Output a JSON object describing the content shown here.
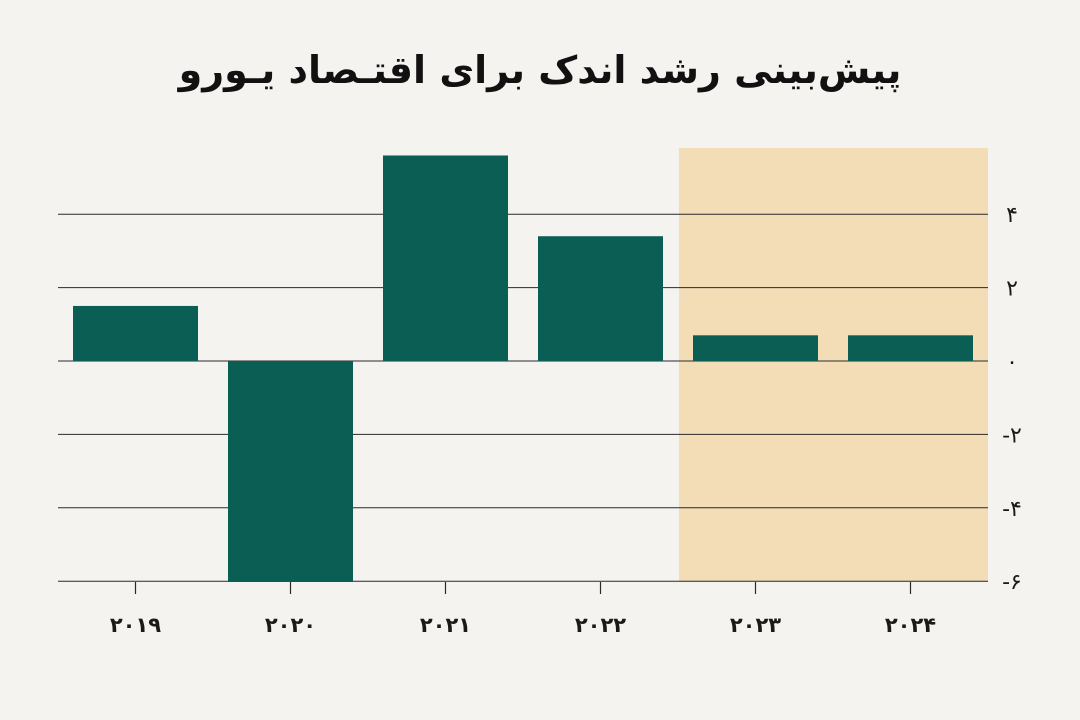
{
  "title": "پیش‌بینی رشد اندک برای اقتـصاد یـورو",
  "colors": {
    "background": "#f4f3ef",
    "bar": "#0b5e54",
    "forecast_band": "#f2ddb6",
    "grid": "#2a2a2a"
  },
  "chart_data": {
    "type": "bar",
    "title": "پیش‌بینی رشد اندک برای اقتـصاد یـورو",
    "xlabel": "",
    "ylabel": "",
    "categories": [
      "۲۰۱۹",
      "۲۰۲۰",
      "۲۰۲۱",
      "۲۰۲۲",
      "۲۰۲۳",
      "۲۰۲۴"
    ],
    "values": [
      1.5,
      -6.1,
      5.6,
      3.4,
      0.7,
      0.7
    ],
    "ylim": [
      -6,
      6
    ],
    "yticks": [
      4,
      2,
      0,
      -2,
      -4,
      -6
    ],
    "ytick_labels": [
      "۴",
      "۲",
      "۰",
      "-۲",
      "-۴",
      "-۶"
    ],
    "highlighted_categories": [
      "۲۰۲۳",
      "۲۰۲۴"
    ],
    "grid": true,
    "axis_side": "right"
  }
}
